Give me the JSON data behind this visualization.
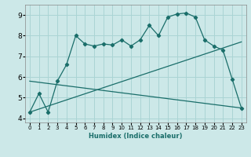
{
  "xlabel": "Humidex (Indice chaleur)",
  "bg_color": "#cce8e8",
  "line_color": "#1a6e6a",
  "grid_color": "#aad4d4",
  "xlim": [
    -0.5,
    23.5
  ],
  "ylim": [
    3.8,
    9.5
  ],
  "xticks": [
    0,
    1,
    2,
    3,
    4,
    5,
    6,
    7,
    8,
    9,
    10,
    11,
    12,
    13,
    14,
    15,
    16,
    17,
    18,
    19,
    20,
    21,
    22,
    23
  ],
  "yticks": [
    4,
    5,
    6,
    7,
    8,
    9
  ],
  "curve1_x": [
    0,
    1,
    2,
    3,
    4,
    5,
    6,
    7,
    8,
    9,
    10,
    11,
    12,
    13,
    14,
    15,
    16,
    17,
    18,
    19,
    20,
    21,
    22,
    23
  ],
  "curve1_y": [
    4.3,
    5.2,
    4.3,
    5.8,
    6.6,
    8.0,
    7.6,
    7.5,
    7.6,
    7.55,
    7.8,
    7.5,
    7.8,
    8.5,
    8.0,
    8.9,
    9.05,
    9.1,
    8.9,
    7.8,
    7.5,
    7.3,
    5.9,
    4.5
  ],
  "curve2_x": [
    0,
    23
  ],
  "curve2_y": [
    4.3,
    7.7
  ],
  "curve3_x": [
    0,
    23
  ],
  "curve3_y": [
    5.8,
    4.5
  ]
}
